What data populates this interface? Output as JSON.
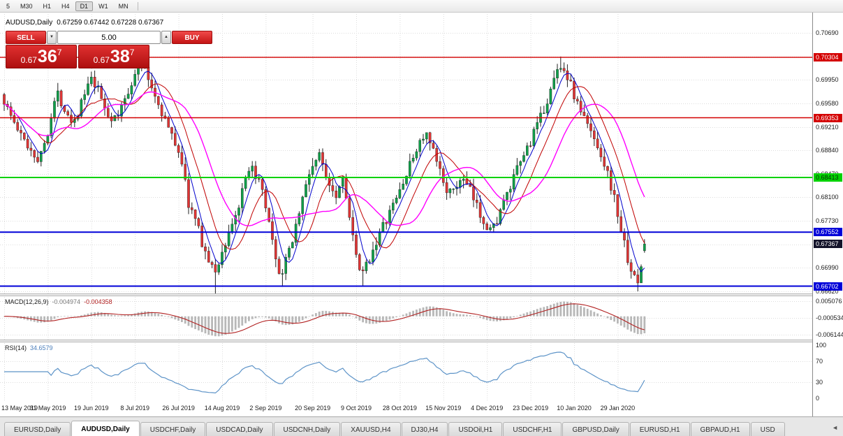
{
  "toolbar": {
    "timeframes": [
      "5",
      "M30",
      "H1",
      "H4",
      "D1",
      "W1",
      "MN"
    ],
    "active": "D1"
  },
  "window": {
    "symbol_title": "AUDUSD,Daily",
    "ohlc_text": "0.67259 0.67442 0.67228 0.67367"
  },
  "trade_panel": {
    "sell_label": "SELL",
    "buy_label": "BUY",
    "volume": "5.00",
    "sell_price": {
      "prefix": "0.67",
      "main": "36",
      "sup": "7"
    },
    "buy_price": {
      "prefix": "0.67",
      "main": "38",
      "sup": "7"
    },
    "volume_down_icon": "▼",
    "volume_up_icon": "▲"
  },
  "main_chart": {
    "y_max": 0.7069,
    "y_min": 0.6662,
    "ticks": [
      "0.70690",
      "0.70320",
      "0.69950",
      "0.69580",
      "0.69210",
      "0.68840",
      "0.68470",
      "0.68100",
      "0.67730",
      "0.67360",
      "0.66990",
      "0.66620"
    ],
    "levels": [
      {
        "price": 0.70304,
        "label": "0.70304",
        "color": "#D40000",
        "text_color": "#FFFFFF",
        "width": 1.4
      },
      {
        "price": 0.69353,
        "label": "0.69353",
        "color": "#D40000",
        "text_color": "#FFFFFF",
        "width": 1.4
      },
      {
        "price": 0.68413,
        "label": "0.68413",
        "color": "#00D200",
        "text_color": "#0A2A0A",
        "width": 2
      },
      {
        "price": 0.67552,
        "label": "0.67552",
        "color": "#0000D8",
        "text_color": "#FFFFFF",
        "width": 2
      },
      {
        "price": 0.66702,
        "label": "0.66702",
        "color": "#0000D8",
        "text_color": "#FFFFFF",
        "width": 2
      }
    ],
    "current_price": "0.67367",
    "candles": {
      "count": 192,
      "last_ohlc": [
        0.67259,
        0.67442,
        0.67228,
        0.67367
      ]
    },
    "ma": [
      {
        "period": 5,
        "color": "#0000CD",
        "width": 1
      },
      {
        "period": 11,
        "color": "#C00000",
        "width": 1
      },
      {
        "period": 20,
        "color": "#FF00FF",
        "width": 1.4
      }
    ],
    "price_path": [
      [
        0.0,
        0.6962
      ],
      [
        0.012,
        0.6935
      ],
      [
        0.025,
        0.6908
      ],
      [
        0.04,
        0.6888
      ],
      [
        0.055,
        0.6868
      ],
      [
        0.068,
        0.6915
      ],
      [
        0.082,
        0.6975
      ],
      [
        0.095,
        0.695
      ],
      [
        0.108,
        0.6928
      ],
      [
        0.122,
        0.6962
      ],
      [
        0.135,
        0.6995
      ],
      [
        0.148,
        0.6975
      ],
      [
        0.162,
        0.694
      ],
      [
        0.175,
        0.693
      ],
      [
        0.188,
        0.6965
      ],
      [
        0.2,
        0.6995
      ],
      [
        0.215,
        0.702
      ],
      [
        0.232,
        0.698
      ],
      [
        0.248,
        0.694
      ],
      [
        0.262,
        0.6905
      ],
      [
        0.275,
        0.688
      ],
      [
        0.288,
        0.68
      ],
      [
        0.3,
        0.677
      ],
      [
        0.315,
        0.672
      ],
      [
        0.328,
        0.669
      ],
      [
        0.34,
        0.672
      ],
      [
        0.352,
        0.676
      ],
      [
        0.365,
        0.679
      ],
      [
        0.378,
        0.684
      ],
      [
        0.39,
        0.6855
      ],
      [
        0.402,
        0.682
      ],
      [
        0.415,
        0.676
      ],
      [
        0.425,
        0.67
      ],
      [
        0.435,
        0.669
      ],
      [
        0.45,
        0.6745
      ],
      [
        0.465,
        0.6805
      ],
      [
        0.48,
        0.686
      ],
      [
        0.492,
        0.6875
      ],
      [
        0.505,
        0.684
      ],
      [
        0.518,
        0.6815
      ],
      [
        0.53,
        0.6845
      ],
      [
        0.542,
        0.676
      ],
      [
        0.552,
        0.67
      ],
      [
        0.56,
        0.6688
      ],
      [
        0.572,
        0.672
      ],
      [
        0.585,
        0.675
      ],
      [
        0.6,
        0.678
      ],
      [
        0.615,
        0.6815
      ],
      [
        0.63,
        0.685
      ],
      [
        0.645,
        0.689
      ],
      [
        0.658,
        0.691
      ],
      [
        0.672,
        0.6875
      ],
      [
        0.688,
        0.683
      ],
      [
        0.7,
        0.6812
      ],
      [
        0.712,
        0.684
      ],
      [
        0.725,
        0.6825
      ],
      [
        0.738,
        0.6795
      ],
      [
        0.75,
        0.6772
      ],
      [
        0.762,
        0.6757
      ],
      [
        0.775,
        0.679
      ],
      [
        0.788,
        0.6818
      ],
      [
        0.8,
        0.685
      ],
      [
        0.812,
        0.6878
      ],
      [
        0.825,
        0.6905
      ],
      [
        0.838,
        0.6935
      ],
      [
        0.852,
        0.6975
      ],
      [
        0.868,
        0.7022
      ],
      [
        0.88,
        0.7
      ],
      [
        0.892,
        0.6965
      ],
      [
        0.903,
        0.694
      ],
      [
        0.915,
        0.6915
      ],
      [
        0.927,
        0.6893
      ],
      [
        0.938,
        0.6862
      ],
      [
        0.95,
        0.682
      ],
      [
        0.96,
        0.6775
      ],
      [
        0.97,
        0.6728
      ],
      [
        0.98,
        0.6695
      ],
      [
        0.988,
        0.6668
      ],
      [
        0.994,
        0.67
      ],
      [
        1.0,
        0.6737
      ]
    ],
    "pins": [
      {
        "t": 0.215,
        "high": 0.703
      },
      {
        "t": 0.328,
        "low": 0.6648
      },
      {
        "t": 0.435,
        "low": 0.6669
      },
      {
        "t": 0.558,
        "low": 0.66703
      },
      {
        "t": 0.762,
        "low": 0.67543
      },
      {
        "t": 0.868,
        "high": 0.70317
      },
      {
        "t": 0.988,
        "low": 0.6662
      }
    ]
  },
  "macd": {
    "label": "MACD(12,26,9)",
    "value_main": "-0.004974",
    "value_signal": "-0.004358",
    "fast": 12,
    "slow": 26,
    "signal_period": 9,
    "axis": [
      "0.005076",
      "-0.000534",
      "-0.006144"
    ],
    "axis_max": 0.005076,
    "axis_min": -0.006144
  },
  "rsi": {
    "label": "RSI(14)",
    "value": "34.6579",
    "period": 14,
    "axis": [
      "100",
      "70",
      "30",
      "0"
    ],
    "levels": [
      70,
      30
    ]
  },
  "x_axis": {
    "dates": [
      "13 May 2019",
      "31 May 2019",
      "19 Jun 2019",
      "8 Jul 2019",
      "26 Jul 2019",
      "14 Aug 2019",
      "2 Sep 2019",
      "20 Sep 2019",
      "9 Oct 2019",
      "28 Oct 2019",
      "15 Nov 2019",
      "4 Dec 2019",
      "23 Dec 2019",
      "10 Jan 2020",
      "29 Jan 2020"
    ]
  },
  "tabs": {
    "items": [
      "EURUSD,Daily",
      "AUDUSD,Daily",
      "USDCHF,Daily",
      "USDCAD,Daily",
      "USDCNH,Daily",
      "XAUUSD,H4",
      "DJ30,H4",
      "USDOil,H1",
      "USDCHF,H1",
      "GBPUSD,Daily",
      "EURUSD,H1",
      "GBPAUD,H1",
      "USD"
    ],
    "active": "AUDUSD,Daily",
    "scroll_left_icon": "◄"
  },
  "colors": {
    "candle_up": "#0FA04A",
    "candle_down": "#E03535",
    "candle_wick": "#222222",
    "macd_hist": "#B8B8B8",
    "macd_signal": "#B22222",
    "rsi_line": "#5E94C8",
    "current_badge": "#14142A",
    "grid": "#DCDCDC",
    "trade_red": "#D42B2B"
  }
}
